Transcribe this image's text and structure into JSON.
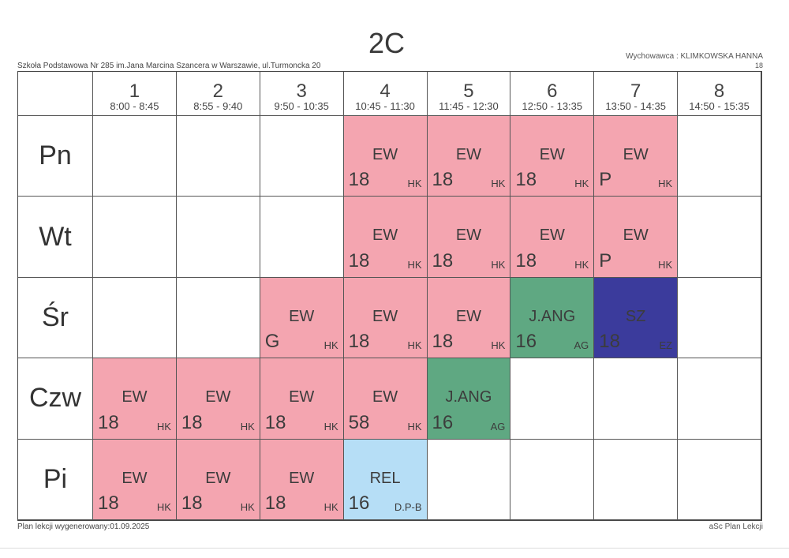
{
  "title": "2C",
  "school": "Szkoła Podstawowa Nr 285 im.Jana Marcina Szancera w Warszawie, ul.Turmoncka 20",
  "teacher": "Wychowawca : KLIMKOWSKA HANNA",
  "room_number": "18",
  "footer_left": "Plan lekcji wygenerowany:01.09.2025",
  "footer_right": "aSc Plan Lekcji",
  "colors": {
    "EW": "#f4a5b0",
    "J.ANG": "#5fa882",
    "SZ": "#3b3b9c",
    "REL": "#b6def6"
  },
  "periods": [
    {
      "n": "1",
      "time": "8:00 - 8:45"
    },
    {
      "n": "2",
      "time": "8:55 - 9:40"
    },
    {
      "n": "3",
      "time": "9:50 - 10:35"
    },
    {
      "n": "4",
      "time": "10:45 - 11:30"
    },
    {
      "n": "5",
      "time": "11:45 - 12:30"
    },
    {
      "n": "6",
      "time": "12:50 - 13:35"
    },
    {
      "n": "7",
      "time": "13:50 - 14:35"
    },
    {
      "n": "8",
      "time": "14:50 - 15:35"
    }
  ],
  "days": [
    {
      "name": "Pn",
      "lessons": [
        null,
        null,
        null,
        {
          "s": "EW",
          "r": "18",
          "t": "HK"
        },
        {
          "s": "EW",
          "r": "18",
          "t": "HK"
        },
        {
          "s": "EW",
          "r": "18",
          "t": "HK"
        },
        {
          "s": "EW",
          "r": "P",
          "t": "HK"
        },
        null
      ]
    },
    {
      "name": "Wt",
      "lessons": [
        null,
        null,
        null,
        {
          "s": "EW",
          "r": "18",
          "t": "HK"
        },
        {
          "s": "EW",
          "r": "18",
          "t": "HK"
        },
        {
          "s": "EW",
          "r": "18",
          "t": "HK"
        },
        {
          "s": "EW",
          "r": "P",
          "t": "HK"
        },
        null
      ]
    },
    {
      "name": "Śr",
      "lessons": [
        null,
        null,
        {
          "s": "EW",
          "r": "G",
          "t": "HK"
        },
        {
          "s": "EW",
          "r": "18",
          "t": "HK"
        },
        {
          "s": "EW",
          "r": "18",
          "t": "HK"
        },
        {
          "s": "J.ANG",
          "r": "16",
          "t": "AG"
        },
        {
          "s": "SZ",
          "r": "18",
          "t": "EZ"
        },
        null
      ]
    },
    {
      "name": "Czw",
      "lessons": [
        {
          "s": "EW",
          "r": "18",
          "t": "HK"
        },
        {
          "s": "EW",
          "r": "18",
          "t": "HK"
        },
        {
          "s": "EW",
          "r": "18",
          "t": "HK"
        },
        {
          "s": "EW",
          "r": "58",
          "t": "HK"
        },
        {
          "s": "J.ANG",
          "r": "16",
          "t": "AG"
        },
        null,
        null,
        null
      ]
    },
    {
      "name": "Pi",
      "lessons": [
        {
          "s": "EW",
          "r": "18",
          "t": "HK"
        },
        {
          "s": "EW",
          "r": "18",
          "t": "HK"
        },
        {
          "s": "EW",
          "r": "18",
          "t": "HK"
        },
        {
          "s": "REL",
          "r": "16",
          "t": "D.P-B"
        },
        null,
        null,
        null,
        null
      ]
    }
  ]
}
